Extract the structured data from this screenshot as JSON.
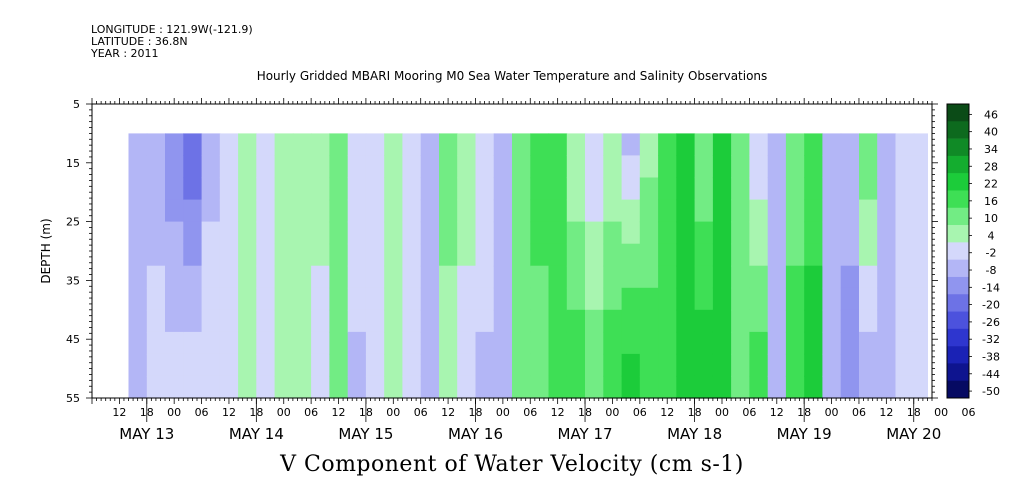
{
  "header": {
    "longitude": "LONGITUDE : 121.9W(-121.9)",
    "latitude": "LATITUDE : 36.8N",
    "year": "YEAR : 2011"
  },
  "chart_data": {
    "type": "heatmap",
    "title": "Hourly Gridded MBARI Mooring M0 Sea Water Temperature and Salinity Observations",
    "variable_label": "V Component of Water Velocity (cm s-1)",
    "ylabel": "DEPTH (m)",
    "ylim": [
      55,
      5
    ],
    "y_ticks": [
      5,
      15,
      25,
      35,
      45,
      55
    ],
    "y_tick_labels": [
      "5",
      "15",
      "25",
      "35",
      "45",
      "55"
    ],
    "xlim_hours": [
      0,
      184
    ],
    "x_hour_ticks": [
      "12",
      "18",
      "00",
      "06",
      "12",
      "18",
      "00",
      "06",
      "12",
      "18",
      "00",
      "06",
      "12",
      "18",
      "00",
      "06",
      "12",
      "18",
      "00",
      "06",
      "12",
      "18",
      "00",
      "06",
      "12",
      "18",
      "00",
      "06",
      "12",
      "18",
      "00",
      "06"
    ],
    "x_dates": [
      "MAY 13",
      "MAY 14",
      "MAY 15",
      "MAY 16",
      "MAY 17",
      "MAY 18",
      "MAY 19",
      "MAY 20"
    ],
    "colorbar": {
      "labels": [
        "46",
        "40",
        "34",
        "28",
        "22",
        "16",
        "10",
        "4",
        "-2",
        "-8",
        "-14",
        "-20",
        "-26",
        "-32",
        "-38",
        "-44",
        "-50"
      ],
      "colors": [
        "#0b4b17",
        "#0d6a1e",
        "#108a26",
        "#14ad2f",
        "#1ccc3a",
        "#3edf55",
        "#72ec84",
        "#a8f5b0",
        "#d4d8fb",
        "#b3b6f6",
        "#9095ef",
        "#6d72e6",
        "#4c52dd",
        "#2e36cf",
        "#1a22b5",
        "#0e148f",
        "#060a62"
      ]
    },
    "data_extent": {
      "depth_top": 10,
      "depth_bottom": 55,
      "hour_start": 8,
      "hour_end": 183
    },
    "column_hours": [
      8,
      12,
      16,
      20,
      24,
      28,
      32,
      36,
      40,
      44,
      48,
      52,
      56,
      60,
      64,
      68,
      72,
      76,
      80,
      84,
      88,
      92,
      96,
      100,
      104,
      108,
      112,
      116,
      120,
      124,
      128,
      132,
      136,
      140,
      144,
      148,
      152,
      156,
      160,
      164,
      168,
      172,
      176,
      180
    ],
    "column_values_upper": [
      -4,
      -8,
      -14,
      -20,
      -4,
      2,
      4,
      -2,
      4,
      8,
      10,
      16,
      4,
      -2,
      10,
      4,
      -8,
      16,
      10,
      4,
      -4,
      10,
      22,
      16,
      4,
      -2,
      4,
      -4,
      8,
      22,
      28,
      10,
      22,
      16,
      -2,
      -8,
      10,
      16,
      -8,
      -2,
      16,
      -4,
      -2,
      2
    ],
    "column_values_lower": [
      -2,
      4,
      2,
      4,
      2,
      4,
      6,
      -2,
      4,
      8,
      -2,
      10,
      -4,
      -2,
      4,
      -2,
      -8,
      4,
      -2,
      -4,
      -8,
      16,
      10,
      16,
      22,
      16,
      22,
      28,
      22,
      16,
      22,
      28,
      22,
      10,
      22,
      -4,
      22,
      28,
      -8,
      -14,
      -8,
      -4,
      -2,
      -2
    ]
  }
}
